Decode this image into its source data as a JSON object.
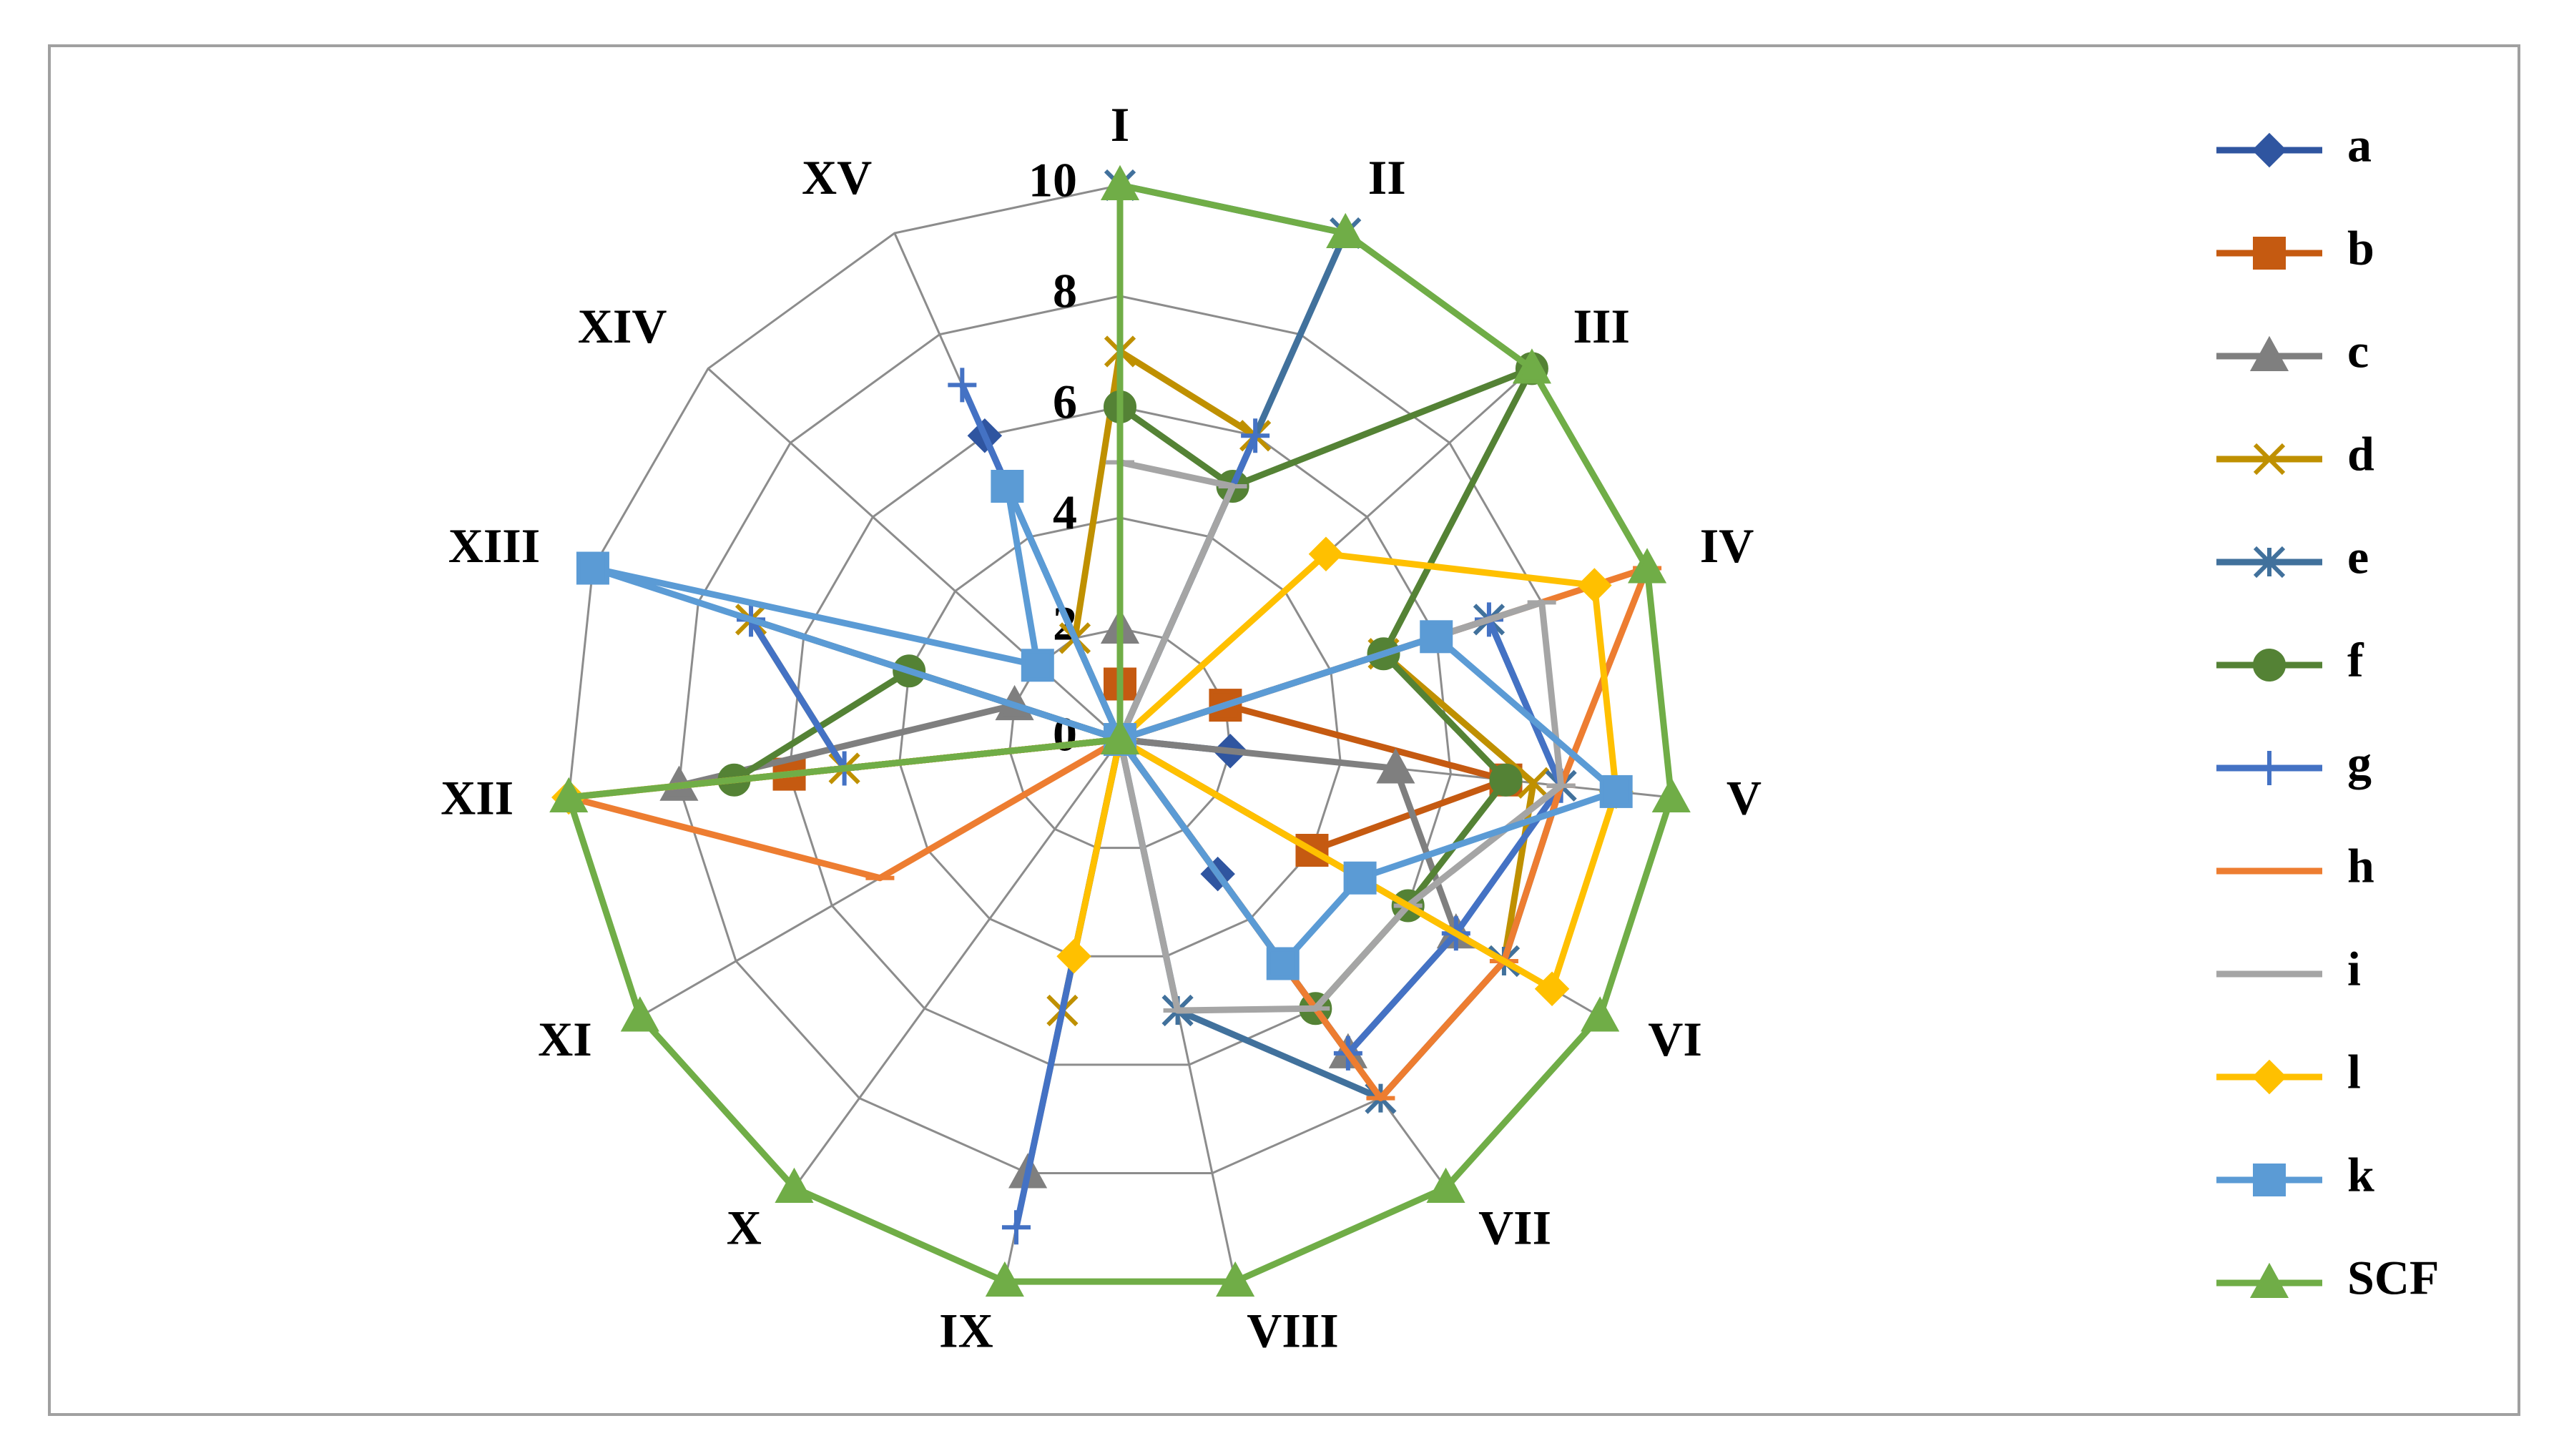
{
  "chart_data": {
    "type": "radar",
    "categories": [
      "I",
      "II",
      "III",
      "IV",
      "V",
      "VI",
      "VII",
      "VIII",
      "IX",
      "X",
      "XI",
      "XII",
      "XIII",
      "XIV",
      "XV"
    ],
    "ylim": [
      0,
      10
    ],
    "yticks": [
      0,
      2,
      4,
      6,
      8,
      10
    ],
    "grid": true,
    "legend": "right",
    "series": [
      {
        "name": "a",
        "color": "#2f55a0",
        "marker": "diamond",
        "values": [
          0,
          0,
          0,
          0,
          2,
          0,
          3,
          0,
          0,
          0,
          0,
          0,
          0,
          0,
          6
        ]
      },
      {
        "name": "b",
        "color": "#c55a11",
        "marker": "square",
        "values": [
          1,
          0,
          0,
          2,
          7,
          4,
          0,
          0,
          0,
          0,
          0,
          6,
          0,
          0,
          0
        ]
      },
      {
        "name": "c",
        "color": "#7f7f7f",
        "marker": "triangle",
        "values": [
          2,
          0,
          0,
          0,
          5,
          7,
          7,
          0,
          8,
          0,
          0,
          8,
          2,
          0,
          0
        ]
      },
      {
        "name": "d",
        "color": "#bf9000",
        "marker": "x",
        "values": [
          7,
          6,
          0,
          5,
          7.5,
          8,
          0,
          0,
          5,
          0,
          0,
          5,
          7,
          0,
          2
        ]
      },
      {
        "name": "e",
        "color": "#41719c",
        "marker": "star",
        "values": [
          10,
          10,
          0,
          7,
          8,
          8,
          8,
          5,
          0,
          0,
          0,
          0,
          0,
          0,
          0
        ]
      },
      {
        "name": "f",
        "color": "#548235",
        "marker": "circle",
        "values": [
          6,
          5,
          10,
          5,
          7,
          6,
          6,
          0,
          0,
          0,
          0,
          7,
          4,
          0,
          0
        ]
      },
      {
        "name": "g",
        "color": "#4472c4",
        "marker": "plus",
        "values": [
          0,
          6,
          0,
          7,
          8,
          7,
          7,
          0,
          9,
          0,
          0,
          5,
          7,
          0,
          7
        ]
      },
      {
        "name": "h",
        "color": "#ed7d31",
        "marker": "dash",
        "values": [
          0,
          0,
          0,
          10,
          8,
          8,
          8,
          0,
          0,
          0,
          5,
          10,
          0,
          0,
          0
        ]
      },
      {
        "name": "i",
        "color": "#a5a5a5",
        "marker": "dash",
        "values": [
          5,
          5,
          0,
          8,
          8,
          6,
          6,
          5,
          0,
          0,
          0,
          0,
          0,
          0,
          0
        ]
      },
      {
        "name": "l",
        "color": "#ffc000",
        "marker": "diamond",
        "values": [
          0,
          0,
          5,
          9,
          9,
          9,
          0,
          0,
          4,
          0,
          0,
          10,
          0,
          0,
          0
        ]
      },
      {
        "name": "k",
        "color": "#5b9bd5",
        "marker": "square",
        "values": [
          0,
          0,
          0,
          6,
          9,
          5,
          5,
          0,
          0,
          0,
          0,
          0,
          10,
          2,
          5
        ]
      },
      {
        "name": "SCF",
        "color": "#70ad47",
        "marker": "triangle",
        "values": [
          10,
          10,
          10,
          10,
          10,
          10,
          10,
          10,
          10,
          10,
          10,
          10,
          0,
          0,
          0
        ]
      }
    ]
  }
}
